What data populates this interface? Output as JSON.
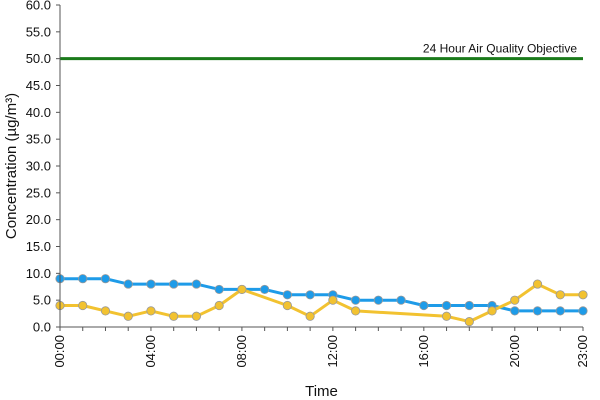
{
  "chart_data": {
    "type": "line",
    "xlabel": "Time",
    "ylabel": "Concentration (µg/m³)",
    "ylim": [
      0,
      60
    ],
    "y_ticks": [
      "0.0",
      "5.0",
      "10.0",
      "15.0",
      "20.0",
      "25.0",
      "30.0",
      "35.0",
      "40.0",
      "45.0",
      "50.0",
      "55.0",
      "60.0"
    ],
    "x_ticks": [
      "00:00",
      "04:00",
      "08:00",
      "12:00",
      "16:00",
      "20:00",
      "23:00"
    ],
    "x_tick_hours": [
      0,
      4,
      8,
      12,
      16,
      20,
      23
    ],
    "grid": false,
    "legend": "none",
    "series": [
      {
        "color": "#1e9be8",
        "points": [
          [
            0,
            9
          ],
          [
            1,
            9
          ],
          [
            2,
            9
          ],
          [
            3,
            8
          ],
          [
            4,
            8
          ],
          [
            5,
            8
          ],
          [
            6,
            8
          ],
          [
            7,
            7
          ],
          [
            8,
            7
          ],
          [
            9,
            7
          ],
          [
            10,
            6
          ],
          [
            11,
            6
          ],
          [
            12,
            6
          ],
          [
            13,
            5
          ],
          [
            14,
            5
          ],
          [
            15,
            5
          ],
          [
            16,
            4
          ],
          [
            17,
            4
          ],
          [
            18,
            4
          ],
          [
            19,
            4
          ],
          [
            20,
            3
          ],
          [
            21,
            3
          ],
          [
            22,
            3
          ],
          [
            23,
            3
          ]
        ]
      },
      {
        "color": "#f2c230",
        "points": [
          [
            0,
            4
          ],
          [
            1,
            4
          ],
          [
            2,
            3
          ],
          [
            3,
            2
          ],
          [
            4,
            3
          ],
          [
            5,
            2
          ],
          [
            6,
            2
          ],
          [
            7,
            4
          ],
          [
            8,
            7
          ],
          [
            10,
            4
          ],
          [
            11,
            2
          ],
          [
            12,
            5
          ],
          [
            13,
            3
          ],
          [
            17,
            2
          ],
          [
            18,
            1
          ],
          [
            19,
            3
          ],
          [
            20,
            5
          ],
          [
            21,
            8
          ],
          [
            22,
            6
          ],
          [
            23,
            6
          ]
        ]
      }
    ],
    "reference_line": {
      "value": 50,
      "label": "24 Hour Air Quality Objective",
      "color": "#1a7a1a"
    }
  }
}
